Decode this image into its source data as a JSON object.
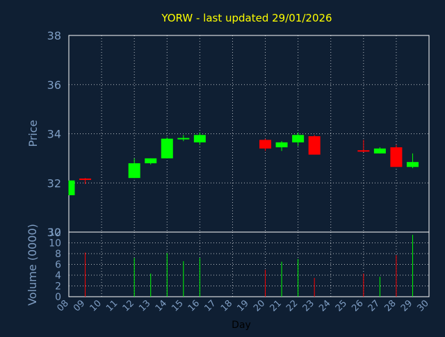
{
  "chart_data": {
    "type": "candlestick",
    "title": "YORW - last updated 29/01/2026",
    "xlabel": "Day",
    "colors": {
      "background": "#0f1f33",
      "title": "#ffff00",
      "axis_text": "#7f9ec4",
      "up": "#00ff00",
      "down": "#ff0000",
      "grid": "#ffffff",
      "plot_border": "#ffffff"
    },
    "price_panel": {
      "ylabel": "Price",
      "ylim": [
        30,
        38
      ],
      "ytick_values": [
        30,
        32,
        34,
        36,
        38
      ],
      "ytick_labels": [
        "30",
        "32",
        "34",
        "36",
        "38"
      ],
      "grid": true
    },
    "volume_panel": {
      "ylabel": "Volume (0000)",
      "ylim": [
        0,
        12
      ],
      "ytick_values": [
        0,
        2,
        4,
        6,
        8,
        10,
        12
      ],
      "ytick_labels": [
        "0",
        "2",
        "4",
        "6",
        "8",
        "10",
        "12"
      ],
      "grid": true
    },
    "x_ticks": [
      {
        "day": 8,
        "label": "08"
      },
      {
        "day": 9,
        "label": "09"
      },
      {
        "day": 10,
        "label": "10"
      },
      {
        "day": 11,
        "label": "11"
      },
      {
        "day": 12,
        "label": "12"
      },
      {
        "day": 13,
        "label": "13"
      },
      {
        "day": 14,
        "label": "14"
      },
      {
        "day": 15,
        "label": "15"
      },
      {
        "day": 16,
        "label": "16"
      },
      {
        "day": 17,
        "label": "17"
      },
      {
        "day": 18,
        "label": "18"
      },
      {
        "day": 19,
        "label": "19"
      },
      {
        "day": 20,
        "label": "20"
      },
      {
        "day": 21,
        "label": "21"
      },
      {
        "day": 22,
        "label": "22"
      },
      {
        "day": 23,
        "label": "23"
      },
      {
        "day": 24,
        "label": "24"
      },
      {
        "day": 25,
        "label": "25"
      },
      {
        "day": 26,
        "label": "26"
      },
      {
        "day": 27,
        "label": "27"
      },
      {
        "day": 28,
        "label": "28"
      },
      {
        "day": 29,
        "label": "29"
      },
      {
        "day": 30,
        "label": "30"
      }
    ],
    "x_grid_days": [
      8,
      10,
      12,
      14,
      16,
      18,
      20,
      22,
      24,
      26,
      28,
      30
    ],
    "xlim": [
      8,
      30
    ],
    "candles": [
      {
        "day": 8,
        "open": 31.5,
        "high": 32.1,
        "low": 31.5,
        "close": 32.1,
        "volume": 0
      },
      {
        "day": 9,
        "open": 32.15,
        "high": 32.2,
        "low": 31.95,
        "close": 32.1,
        "volume": 8.2
      },
      {
        "day": 12,
        "open": 32.2,
        "high": 33.0,
        "low": 32.2,
        "close": 32.8,
        "volume": 7.2
      },
      {
        "day": 13,
        "open": 32.8,
        "high": 33.0,
        "low": 32.75,
        "close": 33.0,
        "volume": 4.3
      },
      {
        "day": 14,
        "open": 33.0,
        "high": 33.85,
        "low": 33.0,
        "close": 33.8,
        "volume": 8.1
      },
      {
        "day": 15,
        "open": 33.75,
        "high": 33.95,
        "low": 33.7,
        "close": 33.8,
        "volume": 6.6
      },
      {
        "day": 16,
        "open": 33.65,
        "high": 34.05,
        "low": 33.55,
        "close": 33.95,
        "volume": 7.2
      },
      {
        "day": 20,
        "open": 33.75,
        "high": 33.8,
        "low": 33.3,
        "close": 33.4,
        "volume": 5.0
      },
      {
        "day": 21,
        "open": 33.45,
        "high": 33.7,
        "low": 33.3,
        "close": 33.65,
        "volume": 6.5
      },
      {
        "day": 22,
        "open": 33.65,
        "high": 34.05,
        "low": 33.5,
        "close": 33.95,
        "volume": 7.0
      },
      {
        "day": 23,
        "open": 33.9,
        "high": 33.95,
        "low": 33.15,
        "close": 33.15,
        "volume": 3.5
      },
      {
        "day": 26,
        "open": 33.3,
        "high": 33.75,
        "low": 33.25,
        "close": 33.25,
        "volume": 4.3
      },
      {
        "day": 27,
        "open": 33.2,
        "high": 33.45,
        "low": 33.2,
        "close": 33.4,
        "volume": 3.7
      },
      {
        "day": 28,
        "open": 33.45,
        "high": 33.55,
        "low": 32.65,
        "close": 32.65,
        "volume": 7.7
      },
      {
        "day": 29,
        "open": 32.65,
        "high": 33.2,
        "low": 32.6,
        "close": 32.85,
        "volume": 11.5
      }
    ]
  }
}
